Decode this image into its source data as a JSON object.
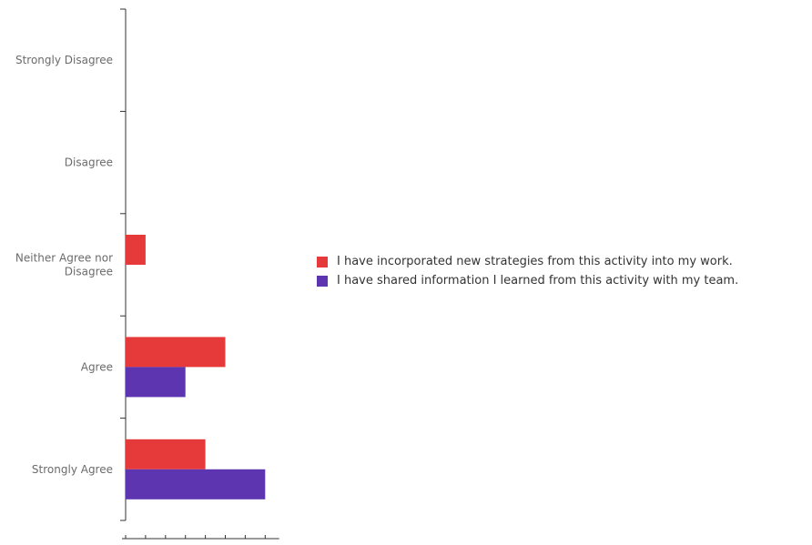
{
  "chart_data": {
    "type": "bar",
    "orientation": "horizontal",
    "categories": [
      "Strongly Disagree",
      "Disagree",
      "Neither Agree nor Disagree",
      "Agree",
      "Strongly Agree"
    ],
    "series": [
      {
        "name": "I have incorporated new strategies from this activity into my work.",
        "color": "#e63a3a",
        "values": [
          0,
          0,
          1,
          5,
          4
        ]
      },
      {
        "name": "I have shared information I learned from this activity with my team.",
        "color": "#5e35b1",
        "values": [
          0,
          0,
          0,
          3,
          7
        ]
      }
    ],
    "xlim": [
      0,
      7
    ],
    "xticks": [
      "0",
      "1",
      "2",
      "3",
      "4",
      "5",
      "6",
      "7"
    ],
    "grid": false,
    "legend_position": "right"
  }
}
